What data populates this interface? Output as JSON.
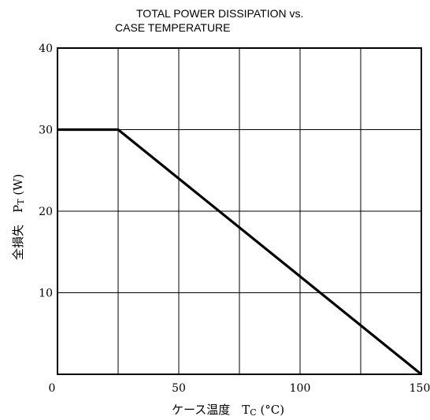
{
  "chart_data": {
    "type": "line",
    "title_lines": [
      "TOTAL POWER DISSIPATION vs.",
      "CASE TEMPERATURE"
    ],
    "xlabel": {
      "main": "ケース温度　T",
      "sub": "C",
      "unit": " (°C)"
    },
    "ylabel": {
      "main": "全損失　P",
      "sub": "T",
      "unit": " (W)"
    },
    "xlim": [
      0,
      150
    ],
    "ylim": [
      0,
      40
    ],
    "x_ticks": [
      {
        "value": 0,
        "label": "0"
      },
      {
        "value": 50,
        "label": "50"
      },
      {
        "value": 100,
        "label": "100"
      },
      {
        "value": 150,
        "label": "150"
      }
    ],
    "y_ticks": [
      {
        "value": 10,
        "label": "10"
      },
      {
        "value": 20,
        "label": "20"
      },
      {
        "value": 30,
        "label": "30"
      },
      {
        "value": 40,
        "label": "40"
      }
    ],
    "x_grid": [
      0,
      25,
      50,
      75,
      100,
      125,
      150
    ],
    "y_grid": [
      0,
      10,
      20,
      30,
      40
    ],
    "grid": true,
    "series": [
      {
        "x": [
          0,
          25,
          150
        ],
        "y": [
          30,
          30,
          0
        ]
      }
    ],
    "colors": {
      "line": "#000000",
      "grid": "#000000",
      "background": "#ffffff"
    }
  }
}
